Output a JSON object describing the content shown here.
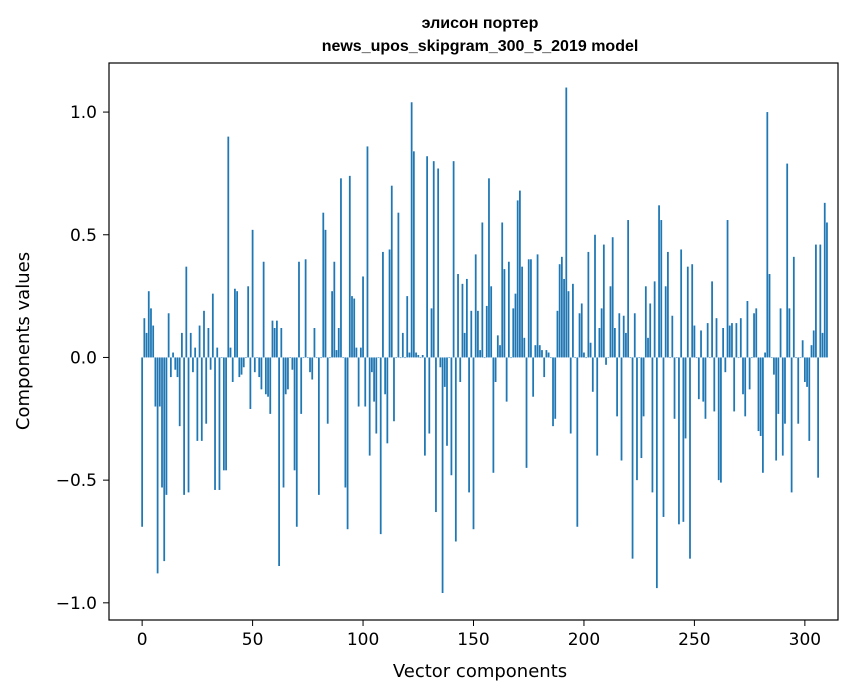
{
  "chart_data": {
    "type": "bar",
    "title": "элисон портер",
    "subtitle": "news_upos_skipgram_300_5_2019 model",
    "xlabel": "Vector components",
    "ylabel": "Components values",
    "xlim": [
      -15,
      315
    ],
    "ylim": [
      -1.07,
      1.2
    ],
    "xticks": [
      0,
      50,
      100,
      150,
      200,
      250,
      300
    ],
    "xtick_labels": [
      "0",
      "50",
      "100",
      "150",
      "200",
      "250",
      "300"
    ],
    "yticks": [
      -1.0,
      -0.5,
      0.0,
      0.5,
      1.0
    ],
    "ytick_labels": [
      "−1.0",
      "−0.5",
      "0.0",
      "0.5",
      "1.0"
    ],
    "bar_color": "#1f77b4",
    "values": [
      -0.69,
      0.16,
      0.1,
      0.27,
      0.2,
      0.13,
      -0.2,
      -0.88,
      -0.2,
      -0.53,
      -0.83,
      -0.56,
      0.18,
      -0.08,
      0.02,
      -0.05,
      -0.08,
      -0.28,
      0.1,
      -0.56,
      0.37,
      -0.55,
      0.1,
      -0.06,
      0.04,
      -0.34,
      0.13,
      -0.34,
      0.19,
      -0.27,
      0.12,
      -0.05,
      0.26,
      -0.54,
      0.04,
      -0.54,
      0.0,
      -0.46,
      -0.46,
      0.9,
      0.04,
      -0.1,
      0.28,
      0.27,
      -0.08,
      -0.07,
      -0.04,
      0.0,
      0.29,
      -0.21,
      0.52,
      -0.06,
      0.0,
      -0.08,
      -0.13,
      0.39,
      -0.15,
      -0.16,
      -0.23,
      0.15,
      0.12,
      0.15,
      -0.85,
      0.12,
      -0.53,
      -0.15,
      -0.13,
      0.0,
      -0.05,
      -0.46,
      -0.69,
      0.39,
      -0.23,
      0.0,
      0.4,
      0.0,
      -0.06,
      -0.09,
      0.12,
      0.0,
      -0.56,
      0.0,
      0.59,
      0.52,
      -0.27,
      0.0,
      0.27,
      0.39,
      0.03,
      0.12,
      0.73,
      0.0,
      -0.53,
      -0.7,
      0.74,
      0.25,
      0.24,
      0.04,
      -0.2,
      0.04,
      0.33,
      -0.2,
      0.86,
      -0.4,
      -0.06,
      -0.18,
      -0.31,
      0.0,
      -0.72,
      0.43,
      -0.15,
      -0.35,
      0.44,
      0.7,
      -0.26,
      0.0,
      0.59,
      0.0,
      0.1,
      0.0,
      0.25,
      0.02,
      1.04,
      0.84,
      0.02,
      0.01,
      0.0,
      0.01,
      -0.4,
      0.82,
      -0.31,
      0.2,
      0.8,
      -0.63,
      0.77,
      -0.04,
      -0.96,
      -0.12,
      -0.36,
      0.0,
      -0.48,
      0.8,
      -0.75,
      0.34,
      -0.1,
      0.3,
      0.1,
      0.32,
      -0.55,
      0.19,
      -0.7,
      0.42,
      0.19,
      0.03,
      0.55,
      0.0,
      0.21,
      0.73,
      0.29,
      -0.47,
      -0.1,
      0.09,
      0.05,
      0.55,
      0.36,
      -0.18,
      0.39,
      0.0,
      0.2,
      0.26,
      0.64,
      0.68,
      0.37,
      0.08,
      -0.45,
      0.4,
      0.4,
      -0.16,
      0.05,
      0.42,
      0.05,
      0.03,
      -0.08,
      0.03,
      0.02,
      0.0,
      -0.28,
      -0.25,
      0.19,
      0.38,
      0.41,
      0.32,
      1.1,
      0.27,
      -0.31,
      0.3,
      0.0,
      -0.69,
      0.18,
      0.22,
      0.02,
      0.0,
      0.43,
      0.06,
      -0.14,
      0.5,
      -0.4,
      0.12,
      0.2,
      0.46,
      -0.03,
      0.0,
      0.29,
      0.49,
      0.12,
      -0.24,
      0.18,
      -0.42,
      0.17,
      0.1,
      0.56,
      0.0,
      -0.82,
      0.18,
      -0.5,
      0.0,
      -0.41,
      -0.24,
      0.29,
      0.08,
      0.22,
      -0.55,
      0.31,
      -0.94,
      0.62,
      0.56,
      -0.65,
      0.29,
      0.43,
      0.0,
      0.17,
      -0.25,
      0.0,
      -0.68,
      0.44,
      -0.67,
      -0.33,
      0.37,
      -0.82,
      0.38,
      0.13,
      0.0,
      -0.17,
      0.11,
      -0.18,
      -0.25,
      0.14,
      0.0,
      0.31,
      -0.22,
      0.16,
      -0.5,
      -0.51,
      0.12,
      -0.06,
      0.56,
      0.13,
      0.14,
      -0.22,
      0.14,
      0.0,
      0.16,
      -0.15,
      -0.24,
      0.23,
      -0.13,
      0.0,
      0.18,
      0.2,
      -0.3,
      -0.32,
      -0.47,
      0.02,
      1.0,
      0.34,
      0.0,
      -0.07,
      -0.42,
      -0.23,
      0.2,
      -0.4,
      -0.27,
      0.79,
      0.2,
      -0.55,
      0.41,
      0.0,
      -0.27,
      0.0,
      0.07,
      -0.1,
      -0.12,
      -0.34,
      0.05,
      0.11,
      0.46,
      -0.49,
      0.46,
      0.1,
      0.63,
      0.55
    ]
  }
}
